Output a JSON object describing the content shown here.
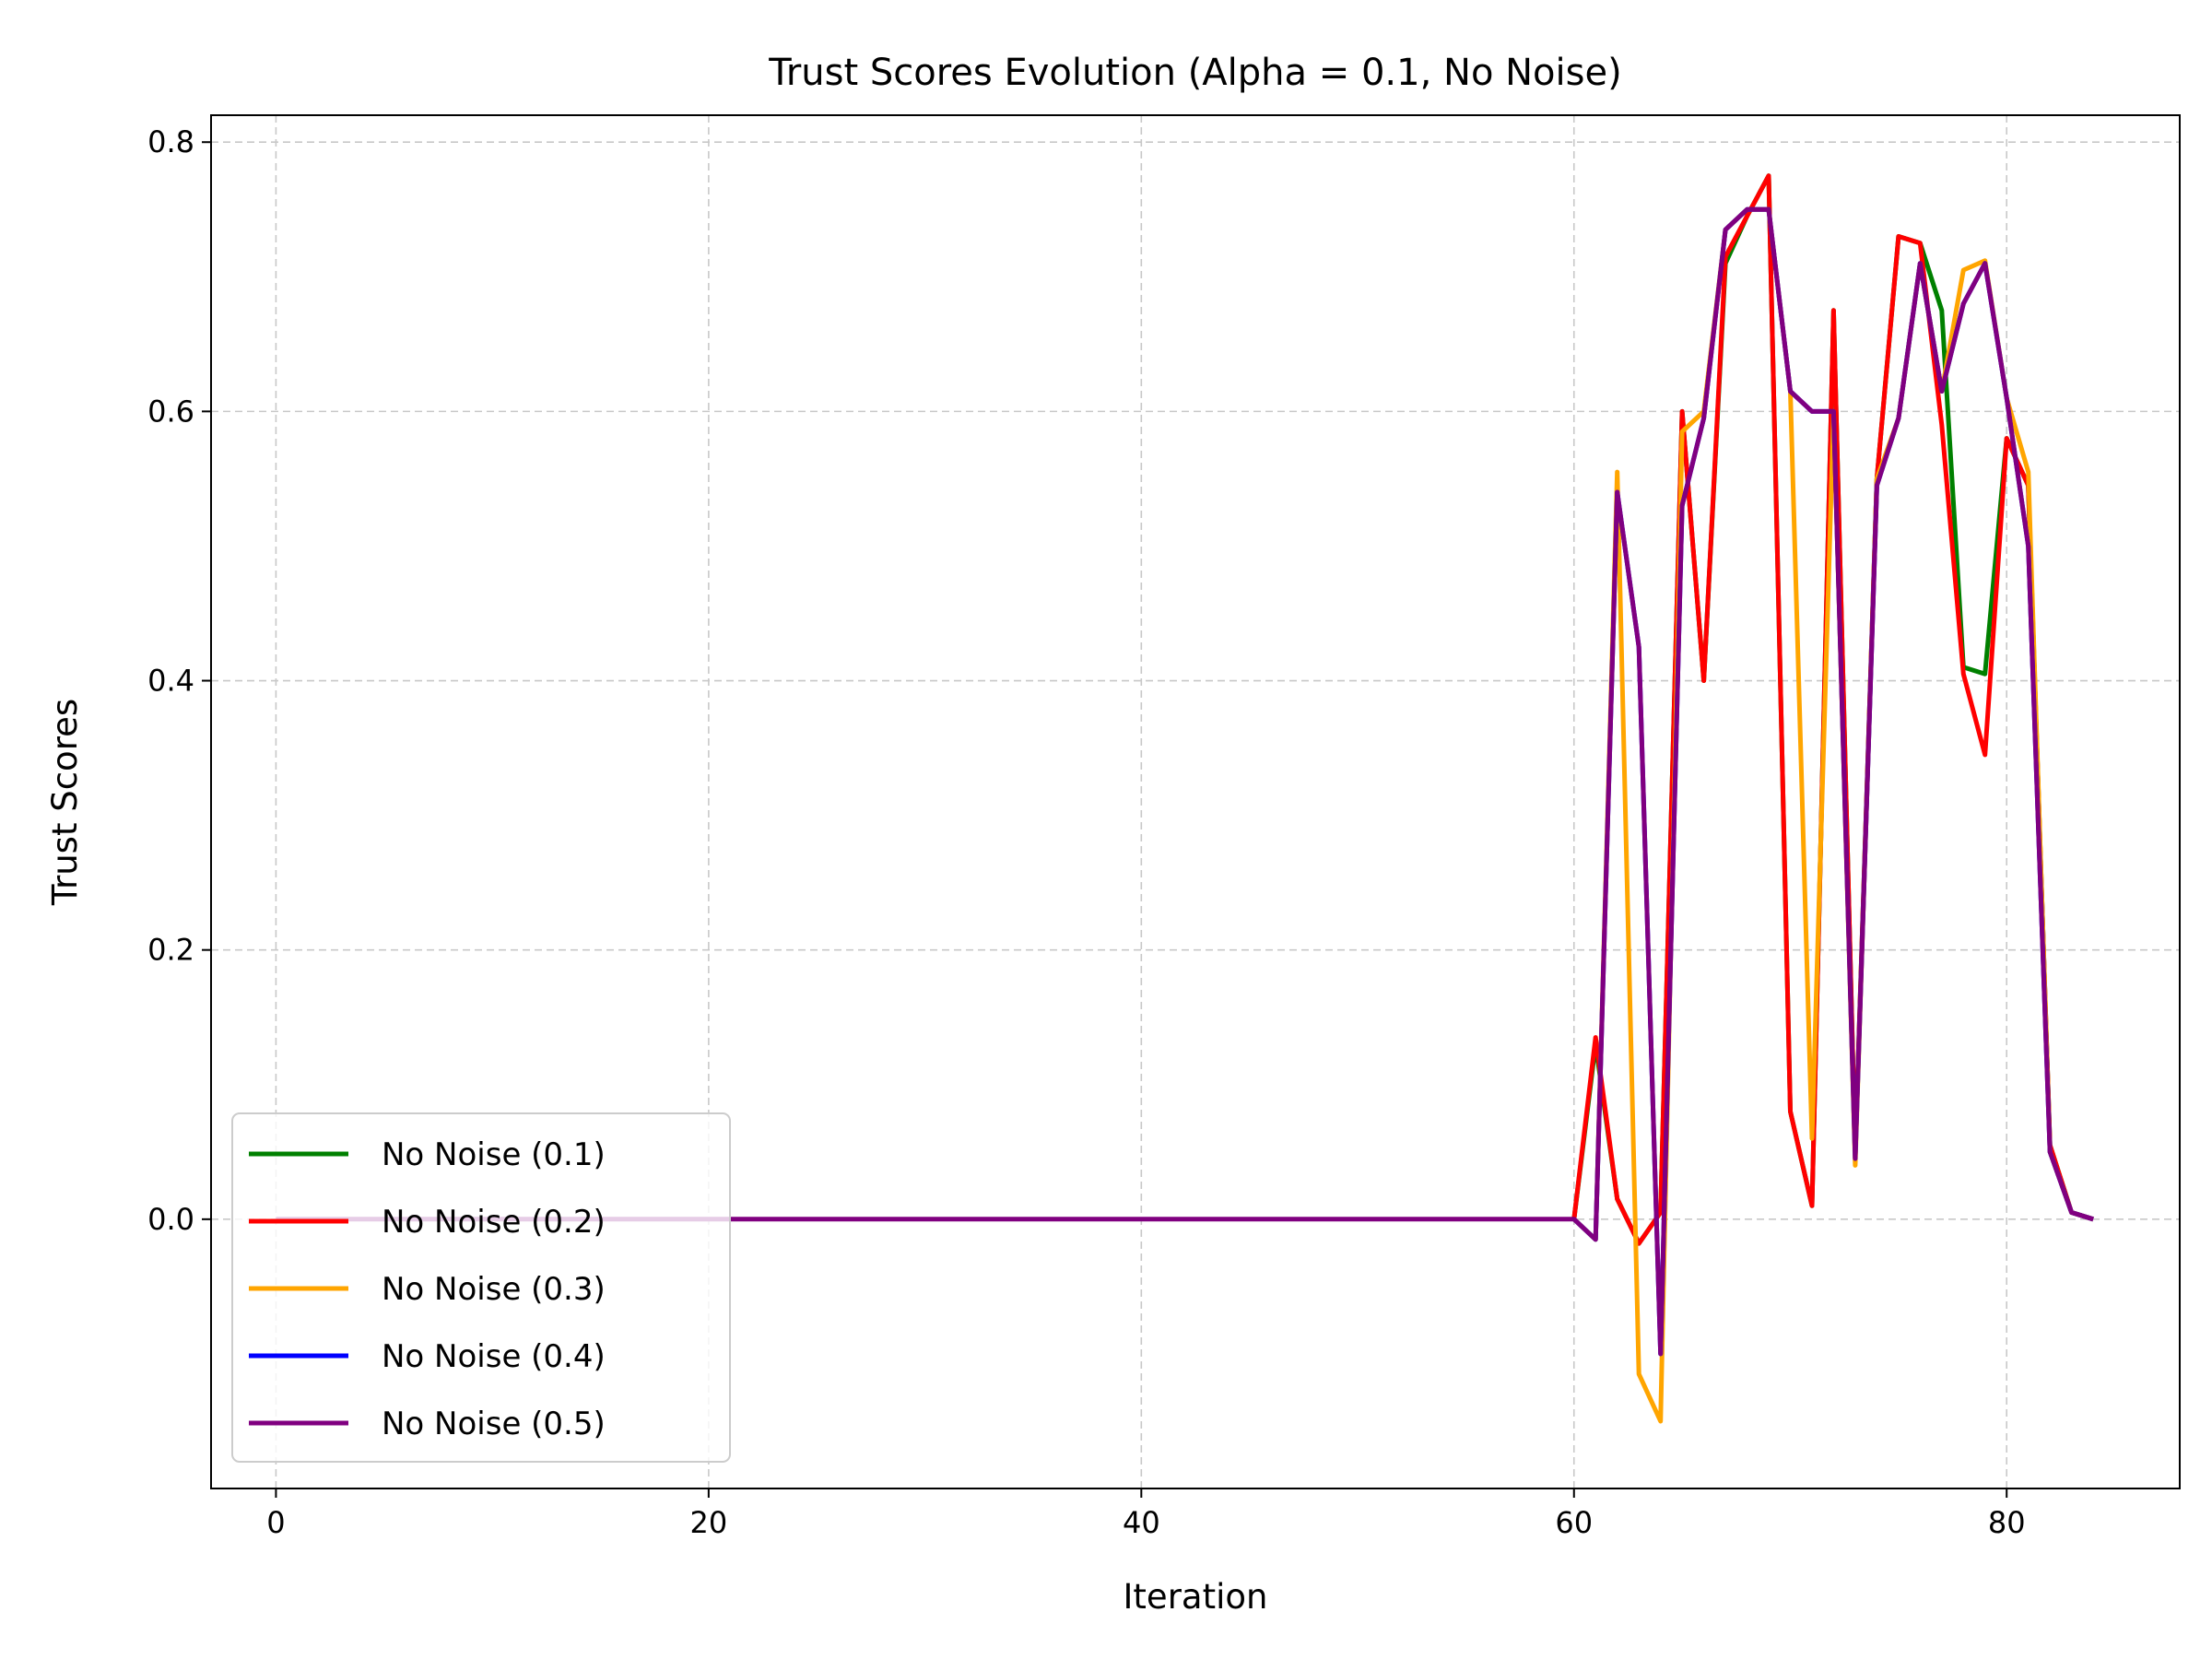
{
  "chart_data": {
    "type": "line",
    "title": "Trust Scores Evolution (Alpha = 0.1, No Noise)",
    "xlabel": "Iteration",
    "ylabel": "Trust Scores",
    "xlim": [
      -3,
      88
    ],
    "ylim": [
      -0.2,
      0.82
    ],
    "xticks": [
      0,
      20,
      40,
      60,
      80
    ],
    "yticks": [
      0.0,
      0.2,
      0.4,
      0.6,
      0.8
    ],
    "xtick_labels": [
      "0",
      "20",
      "40",
      "60",
      "80"
    ],
    "ytick_labels": [
      "0.0",
      "0.2",
      "0.4",
      "0.6",
      "0.8"
    ],
    "grid": true,
    "legend_position": "lower-left",
    "series": [
      {
        "name": "No Noise (0.1)",
        "color": "#008000",
        "x": [
          60,
          61,
          62,
          63,
          64,
          65,
          66,
          67,
          68,
          69,
          70,
          71,
          72,
          73,
          74,
          75,
          76,
          77,
          78,
          79,
          80,
          81,
          82,
          83,
          84
        ],
        "y": [
          0.0,
          0.13,
          0.015,
          -0.018,
          0.005,
          0.6,
          0.4,
          0.71,
          0.745,
          0.775,
          0.08,
          0.01,
          0.675,
          0.05,
          0.55,
          0.73,
          0.725,
          0.675,
          0.41,
          0.405,
          0.58,
          0.545,
          0.055,
          0.005,
          0.0
        ]
      },
      {
        "name": "No Noise (0.2)",
        "color": "#ff0000",
        "x": [
          60,
          61,
          62,
          63,
          64,
          65,
          66,
          67,
          68,
          69,
          70,
          71,
          72,
          73,
          74,
          75,
          76,
          77,
          78,
          79,
          80,
          81,
          82,
          83,
          84
        ],
        "y": [
          0.0,
          0.135,
          0.015,
          -0.018,
          0.005,
          0.6,
          0.4,
          0.715,
          0.745,
          0.775,
          0.08,
          0.01,
          0.675,
          0.05,
          0.55,
          0.73,
          0.725,
          0.59,
          0.405,
          0.345,
          0.58,
          0.545,
          0.055,
          0.005,
          0.0
        ]
      },
      {
        "name": "No Noise (0.3)",
        "color": "#ffa500",
        "x": [
          60,
          61,
          62,
          63,
          64,
          65,
          66,
          67,
          68,
          69,
          70,
          71,
          72,
          73,
          74,
          75,
          76,
          77,
          78,
          79,
          80,
          81,
          82,
          83,
          84
        ],
        "y": [
          0.0,
          -0.015,
          0.555,
          -0.115,
          -0.15,
          0.585,
          0.6,
          0.735,
          0.75,
          0.75,
          0.615,
          0.06,
          0.6,
          0.04,
          0.55,
          0.595,
          0.71,
          0.615,
          0.705,
          0.712,
          0.61,
          0.555,
          0.05,
          0.005,
          0.0
        ]
      },
      {
        "name": "No Noise (0.4)",
        "color": "#0000ff",
        "x": [
          60,
          61,
          62,
          63,
          64,
          65,
          66,
          67,
          68,
          69,
          70,
          71,
          72,
          73,
          74,
          75,
          76,
          77,
          78,
          79,
          80,
          81,
          82,
          83,
          84
        ],
        "y": [
          0.0,
          -0.015,
          0.54,
          0.425,
          -0.1,
          0.53,
          0.595,
          0.735,
          0.75,
          0.75,
          0.615,
          0.6,
          0.6,
          0.045,
          0.545,
          0.595,
          0.71,
          0.615,
          0.68,
          0.71,
          0.61,
          0.5,
          0.05,
          0.005,
          0.0
        ]
      },
      {
        "name": "No Noise (0.5)",
        "color": "#800080",
        "x": [
          0,
          60,
          61,
          62,
          63,
          64,
          65,
          66,
          67,
          68,
          69,
          70,
          71,
          72,
          73,
          74,
          75,
          76,
          77,
          78,
          79,
          80,
          81,
          82,
          83,
          84
        ],
        "y": [
          0.0,
          0.0,
          -0.015,
          0.54,
          0.425,
          -0.1,
          0.53,
          0.595,
          0.735,
          0.75,
          0.75,
          0.615,
          0.6,
          0.6,
          0.045,
          0.545,
          0.595,
          0.71,
          0.615,
          0.68,
          0.71,
          0.61,
          0.5,
          0.05,
          0.005,
          0.0
        ]
      }
    ]
  }
}
